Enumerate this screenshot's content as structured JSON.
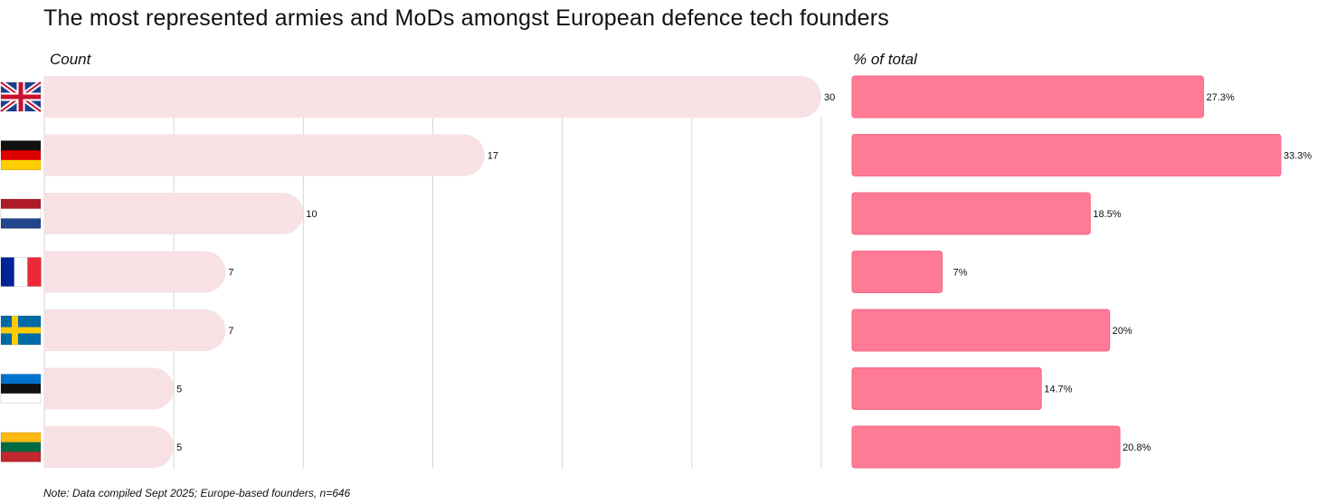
{
  "title": "The most represented armies and MoDs amongst European defence tech founders",
  "note": "Note: Data compiled Sept 2025; Europe-based founders, n=646",
  "colors": {
    "count_bar": "#F7E1E5",
    "pct_bar": "#FF7A95",
    "pct_bar_border": "#F26A88",
    "grid": "#d6d6d6"
  },
  "chart_data": [
    {
      "type": "bar",
      "orientation": "horizontal",
      "title": "Count",
      "categories": [
        "flag-uk-icon",
        "flag-germany-icon",
        "flag-netherlands-icon",
        "flag-france-icon",
        "flag-sweden-icon",
        "flag-estonia-icon",
        "flag-lithuania-icon"
      ],
      "values": [
        30,
        17,
        10,
        7,
        7,
        5,
        5
      ],
      "labels": [
        "30",
        "17",
        "10",
        "7",
        "7",
        "5",
        "5"
      ],
      "xlim": [
        0,
        30
      ],
      "grid_step": 5,
      "grid": true
    },
    {
      "type": "bar",
      "orientation": "horizontal",
      "title": "% of total",
      "categories": [
        "flag-uk-icon",
        "flag-germany-icon",
        "flag-netherlands-icon",
        "flag-france-icon",
        "flag-sweden-icon",
        "flag-estonia-icon",
        "flag-lithuania-icon"
      ],
      "values": [
        27.3,
        33.3,
        18.5,
        7,
        20,
        14.7,
        20.8
      ],
      "labels": [
        "27.3%",
        "33.3%",
        "18.5%",
        "7%",
        "20%",
        "14.7%",
        "20.8%"
      ],
      "xlim": [
        0,
        33.3
      ],
      "grid": false
    }
  ]
}
